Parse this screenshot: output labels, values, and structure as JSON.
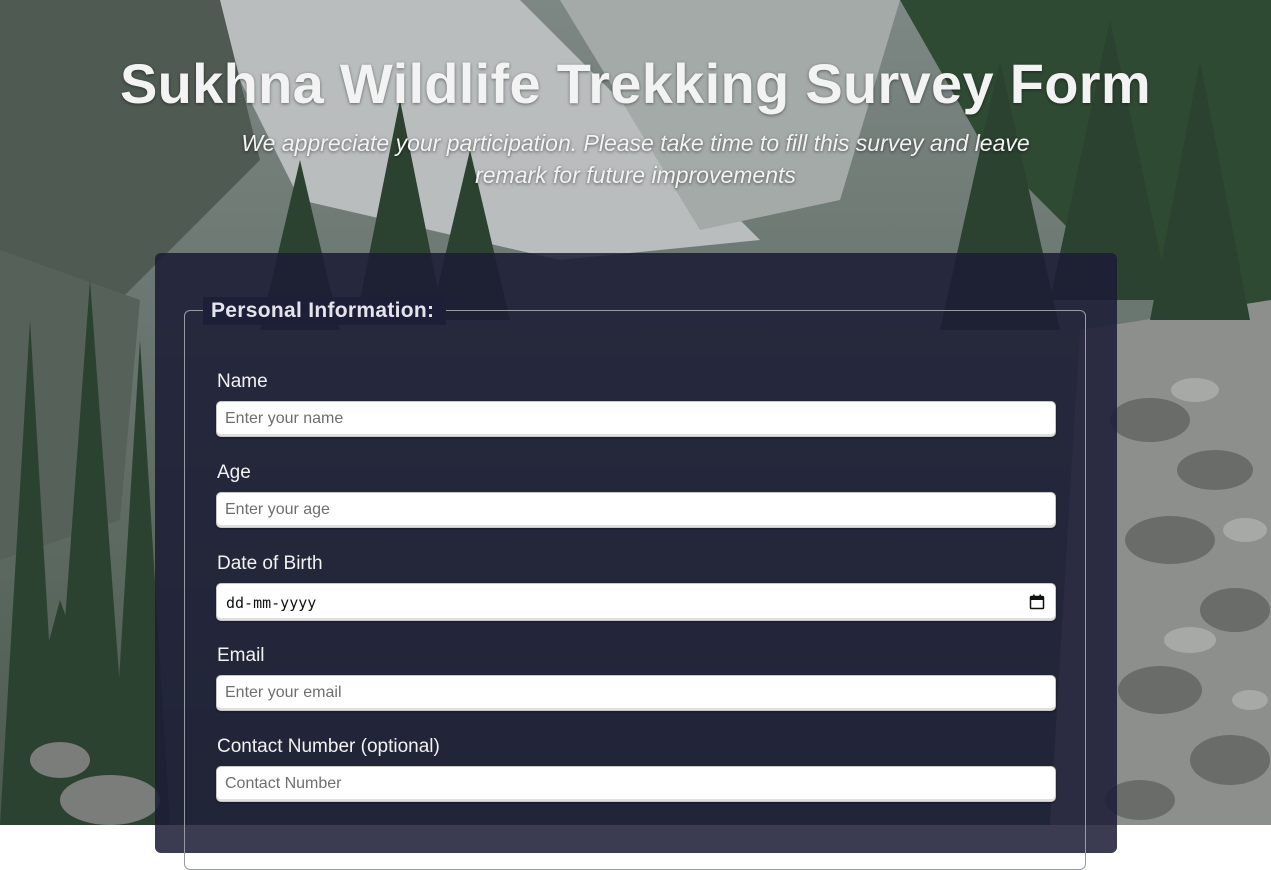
{
  "header": {
    "title": "Sukhna Wildlife Trekking Survey Form",
    "subtitle": "We appreciate your participation. Please take time to fill this survey and leave remark for future improvements"
  },
  "form": {
    "legend": "Personal Information:",
    "fields": [
      {
        "label": "Name",
        "placeholder": "Enter your name"
      },
      {
        "label": "Age",
        "placeholder": "Enter your age"
      },
      {
        "label": "Date of Birth",
        "value": "dd-mm-yyyy",
        "icon": "calendar-icon"
      },
      {
        "label": "Email",
        "placeholder": "Enter your email"
      },
      {
        "label": "Contact Number (optional)",
        "placeholder": "Contact Number"
      }
    ]
  },
  "colors": {
    "panel": "#1b1c34",
    "text": "#f3f3f3",
    "input_bg": "#ffffff"
  }
}
